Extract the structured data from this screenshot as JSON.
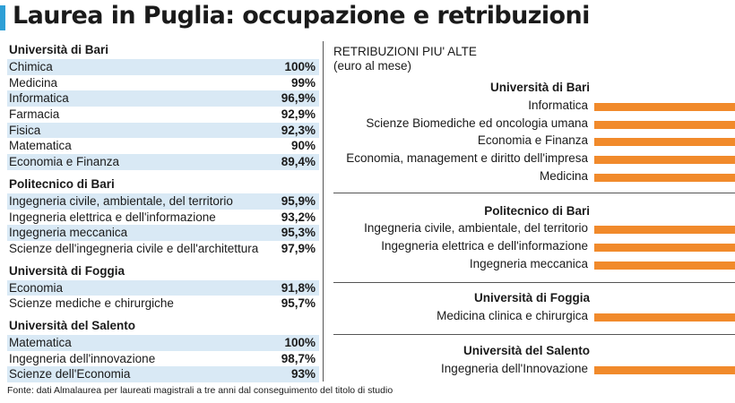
{
  "title": "Laurea in Puglia: occupazione e retribuzioni",
  "colors": {
    "accent": "#2e9fd6",
    "row_shade": "#d9e9f5",
    "bar": "#f18a2b"
  },
  "occupazione": {
    "groups": [
      {
        "name": "Università di Bari",
        "rows": [
          {
            "label": "Chimica",
            "value": "100%"
          },
          {
            "label": "Medicina",
            "value": "99%"
          },
          {
            "label": "Informatica",
            "value": "96,9%"
          },
          {
            "label": "Farmacia",
            "value": "92,9%"
          },
          {
            "label": "Fisica",
            "value": "92,3%"
          },
          {
            "label": "Matematica",
            "value": "90%"
          },
          {
            "label": "Economia e Finanza",
            "value": "89,4%"
          }
        ]
      },
      {
        "name": "Politecnico di Bari",
        "rows": [
          {
            "label": "Ingegneria civile, ambientale, del territorio",
            "value": "95,9%"
          },
          {
            "label": "Ingegneria elettrica e dell'informazione",
            "value": "93,2%"
          },
          {
            "label": "Ingegneria meccanica",
            "value": "95,3%"
          },
          {
            "label": "Scienze dell'ingegneria civile e dell'architettura",
            "value": "97,9%"
          }
        ]
      },
      {
        "name": "Università di Foggia",
        "rows": [
          {
            "label": "Economia",
            "value": "91,8%"
          },
          {
            "label": "Scienze mediche e chirurgiche",
            "value": "95,7%"
          }
        ]
      },
      {
        "name": "Università del Salento",
        "rows": [
          {
            "label": "Matematica",
            "value": "100%"
          },
          {
            "label": "Ingegneria dell'innovazione",
            "value": "98,7%"
          },
          {
            "label": "Scienze dell'Economia",
            "value": "93%"
          }
        ]
      }
    ]
  },
  "chart_data": {
    "type": "bar",
    "title": "RETRIBUZIONI PIU' ALTE",
    "subtitle": "(euro al mese)",
    "groups": [
      {
        "name": "Università di Bari",
        "categories": [
          "Informatica",
          "Scienze Biomediche ed oncologia umana",
          "Economia e Finanza",
          "Economia, management e diritto dell'impresa",
          "Medicina"
        ]
      },
      {
        "name": "Politecnico di Bari",
        "categories": [
          "Ingegneria civile, ambientale, del territorio",
          "Ingegneria elettrica e dell'informazione",
          "Ingegneria meccanica"
        ]
      },
      {
        "name": "Università di Foggia",
        "categories": [
          "Medicina clinica e chirurgica"
        ]
      },
      {
        "name": "Università del Salento",
        "categories": [
          "Ingegneria dell'Innovazione"
        ]
      }
    ],
    "note": "bars extend beyond the cropped right edge; values not visible"
  },
  "footer": "Fonte:  dati Almalaurea per laureati magistrali a tre anni dal conseguimento del titolo di studio"
}
